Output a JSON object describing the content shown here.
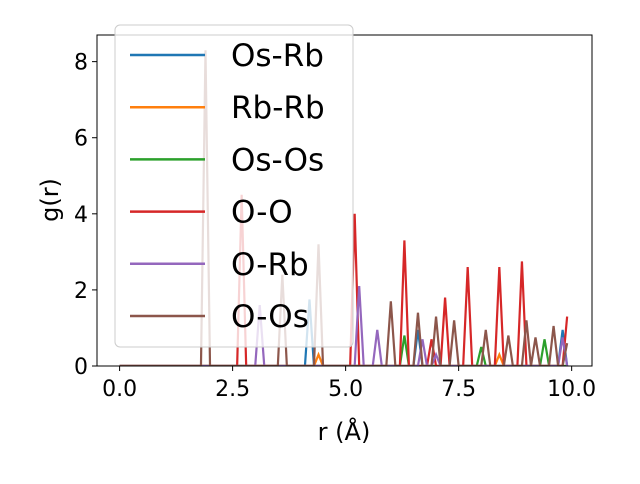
{
  "chart_data": {
    "type": "line",
    "xlabel": "r (Å)",
    "ylabel": "g(r)",
    "xlim": [
      -0.5,
      10.45
    ],
    "ylim": [
      0,
      8.7
    ],
    "xticks": [
      {
        "value": 0,
        "label": "0.0"
      },
      {
        "value": 2.5,
        "label": "2.5"
      },
      {
        "value": 5,
        "label": "5.0"
      },
      {
        "value": 7.5,
        "label": "7.5"
      },
      {
        "value": 10,
        "label": "10.0"
      }
    ],
    "yticks": [
      0,
      2,
      4,
      6,
      8
    ],
    "legend": "upper left",
    "series": [
      {
        "name": "Os-Rb",
        "color": "#1f77b4",
        "x": [
          0,
          4.1,
          4.2,
          4.3,
          6.5,
          6.6,
          6.7,
          9.7,
          9.8,
          9.9
        ],
        "values": [
          0,
          0,
          1.75,
          0,
          0,
          0.95,
          0,
          0,
          0.95,
          0
        ]
      },
      {
        "name": "Rb-Rb",
        "color": "#ff7f0e",
        "x": [
          0,
          4.3,
          4.4,
          4.5,
          8.3,
          8.4,
          8.5,
          9.9
        ],
        "values": [
          0,
          0,
          0.3,
          0,
          0,
          0.3,
          0,
          0
        ]
      },
      {
        "name": "Os-Os",
        "color": "#2ca02c",
        "x": [
          0,
          6.2,
          6.3,
          6.4,
          7.9,
          8.0,
          8.1,
          9.3,
          9.4,
          9.5,
          9.9
        ],
        "values": [
          0,
          0,
          0.8,
          0,
          0,
          0.5,
          0,
          0,
          0.7,
          0,
          0
        ]
      },
      {
        "name": "O-O",
        "color": "#d62728",
        "x": [
          0,
          2.6,
          2.7,
          2.8,
          5.1,
          5.2,
          5.3,
          6.2,
          6.3,
          6.4,
          6.8,
          6.9,
          7.0,
          7.1,
          7.2,
          7.3,
          7.6,
          7.7,
          7.8,
          8.3,
          8.4,
          8.5,
          8.8,
          8.9,
          9.0,
          9.8,
          9.9
        ],
        "values": [
          0,
          0,
          4.5,
          0,
          0,
          4.0,
          0,
          0,
          3.3,
          0,
          0,
          0.7,
          0,
          0,
          1.8,
          0,
          0,
          2.6,
          0,
          0,
          2.6,
          0,
          0,
          2.75,
          0,
          0,
          1.3
        ]
      },
      {
        "name": "O-Rb",
        "color": "#9467bd",
        "x": [
          0,
          3.0,
          3.1,
          3.2,
          5.2,
          5.3,
          5.4,
          5.6,
          5.7,
          5.8,
          6.6,
          6.7,
          6.8,
          6.9,
          7.0,
          7.1,
          9.7,
          9.8,
          9.9
        ],
        "values": [
          0,
          0,
          1.6,
          0,
          0,
          2.1,
          0,
          0,
          0.95,
          0,
          0,
          0.7,
          0,
          0,
          0.3,
          0,
          0,
          0.75,
          0
        ]
      },
      {
        "name": "O-Os",
        "color": "#8c564b",
        "x": [
          0,
          1.8,
          1.9,
          2.0,
          3.5,
          3.6,
          3.7,
          4.3,
          4.4,
          4.5,
          5.9,
          6.0,
          6.1,
          6.5,
          6.6,
          6.7,
          6.9,
          7.0,
          7.1,
          7.3,
          7.4,
          7.5,
          8.0,
          8.1,
          8.2,
          8.5,
          8.6,
          8.7,
          8.9,
          9.0,
          9.1,
          9.2,
          9.3,
          9.5,
          9.6,
          9.7,
          9.8,
          9.9
        ],
        "values": [
          0,
          0,
          8.3,
          0,
          0,
          2.4,
          0,
          0,
          3.2,
          0,
          0,
          1.7,
          0,
          0,
          1.4,
          0,
          0,
          1.3,
          0,
          0,
          1.2,
          0,
          0,
          0.95,
          0,
          0,
          0.8,
          0,
          0,
          1.2,
          0,
          0.75,
          0,
          0,
          1.05,
          0,
          0,
          0.6
        ]
      }
    ]
  }
}
